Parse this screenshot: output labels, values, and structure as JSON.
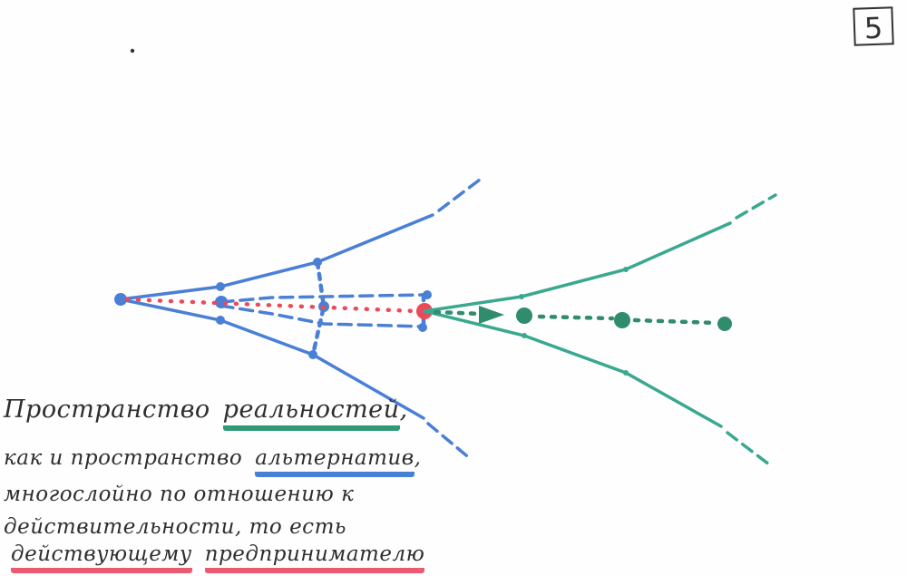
{
  "page_number": "5",
  "colors": {
    "blue": "#4a7fd6",
    "teal": "#3aa890",
    "red": "#ea4a5a",
    "dark_green": "#2f8c6c",
    "ink": "#2e2e2e",
    "underline_green": "#2e9a78",
    "underline_blue": "#4a7fd6",
    "underline_red": "#ea5a70"
  },
  "caption": {
    "line1_text": "Пространство",
    "line1_underlined": "реальностей",
    "line1_end": ",",
    "line2_text": "как и пространство",
    "line2_underlined": "альтернатив",
    "line2_end": ",",
    "line3": "многослойно по отношению к",
    "line4_a": "действительности",
    "line4_b": ", то есть",
    "line5_underlined": "действующему",
    "line5_text": "предпринимателю"
  }
}
